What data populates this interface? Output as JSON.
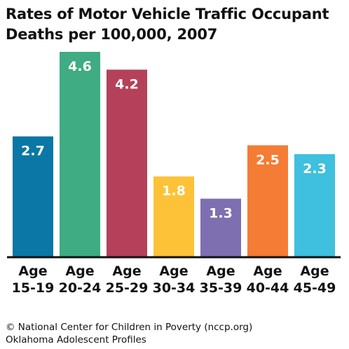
{
  "title_lines": [
    "Rates of Motor Vehicle Traffic Occupant",
    "Deaths per 100,000, 2007"
  ],
  "credit_lines": [
    "© National Center for Children in Poverty (nccp.org)",
    "Oklahoma Adolescent Profiles"
  ],
  "chart_data": {
    "type": "bar",
    "title": "Rates of Motor Vehicle Traffic Occupant Deaths per 100,000, 2007",
    "categories": [
      "Age 15-19",
      "Age 20-24",
      "Age 25-29",
      "Age 30-34",
      "Age 35-39",
      "Age 40-44",
      "Age 45-49"
    ],
    "tick_lines": [
      [
        "Age",
        "15-19"
      ],
      [
        "Age",
        "20-24"
      ],
      [
        "Age",
        "25-29"
      ],
      [
        "Age",
        "30-34"
      ],
      [
        "Age",
        "35-39"
      ],
      [
        "Age",
        "40-44"
      ],
      [
        "Age",
        "45-49"
      ]
    ],
    "values": [
      2.7,
      4.6,
      4.2,
      1.8,
      1.3,
      2.5,
      2.3
    ],
    "value_labels": [
      "2.7",
      "4.6",
      "4.2",
      "1.8",
      "1.3",
      "2.5",
      "2.3"
    ],
    "colors": [
      "#0a77a6",
      "#3fac83",
      "#b44159",
      "#fdc238",
      "#7e6fb1",
      "#f47c34",
      "#3ec0de"
    ],
    "ylim": [
      0,
      5
    ],
    "grid": false,
    "legend": "none",
    "xlabel": "",
    "ylabel": ""
  }
}
